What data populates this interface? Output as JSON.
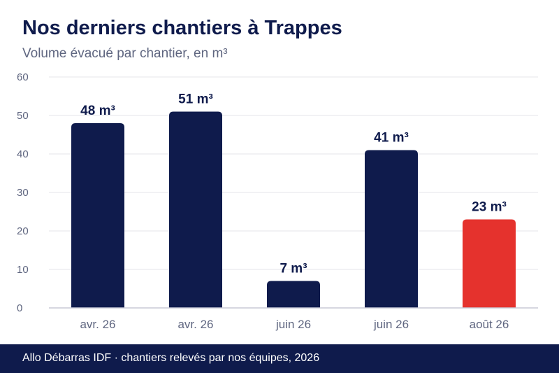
{
  "header": {
    "title": "Nos derniers chantiers à Trappes",
    "subtitle": "Volume évacué par chantier, en m³"
  },
  "footer": {
    "text": "Allo Débarras IDF · chantiers relevés par nos équipes, 2026"
  },
  "colors": {
    "bar_default": "#0f1b4c",
    "bar_highlight": "#e5322d",
    "grid": "#e6e6ea",
    "axis": "#c8cad6",
    "tick_text": "#5f6680",
    "label_text": "#0f1b4c"
  },
  "chart_data": {
    "type": "bar",
    "title": "Nos derniers chantiers à Trappes",
    "subtitle": "Volume évacué par chantier, en m³",
    "categories": [
      "avr. 26",
      "avr. 26",
      "juin 26",
      "juin 26",
      "août 26"
    ],
    "values": [
      48,
      51,
      7,
      41,
      23
    ],
    "data_labels": [
      "48 m³",
      "51 m³",
      "7 m³",
      "41 m³",
      "23 m³"
    ],
    "highlight_index": 4,
    "ylim": [
      0,
      60
    ],
    "yticks": [
      0,
      10,
      20,
      30,
      40,
      50,
      60
    ],
    "grid": true,
    "legend": "none"
  }
}
